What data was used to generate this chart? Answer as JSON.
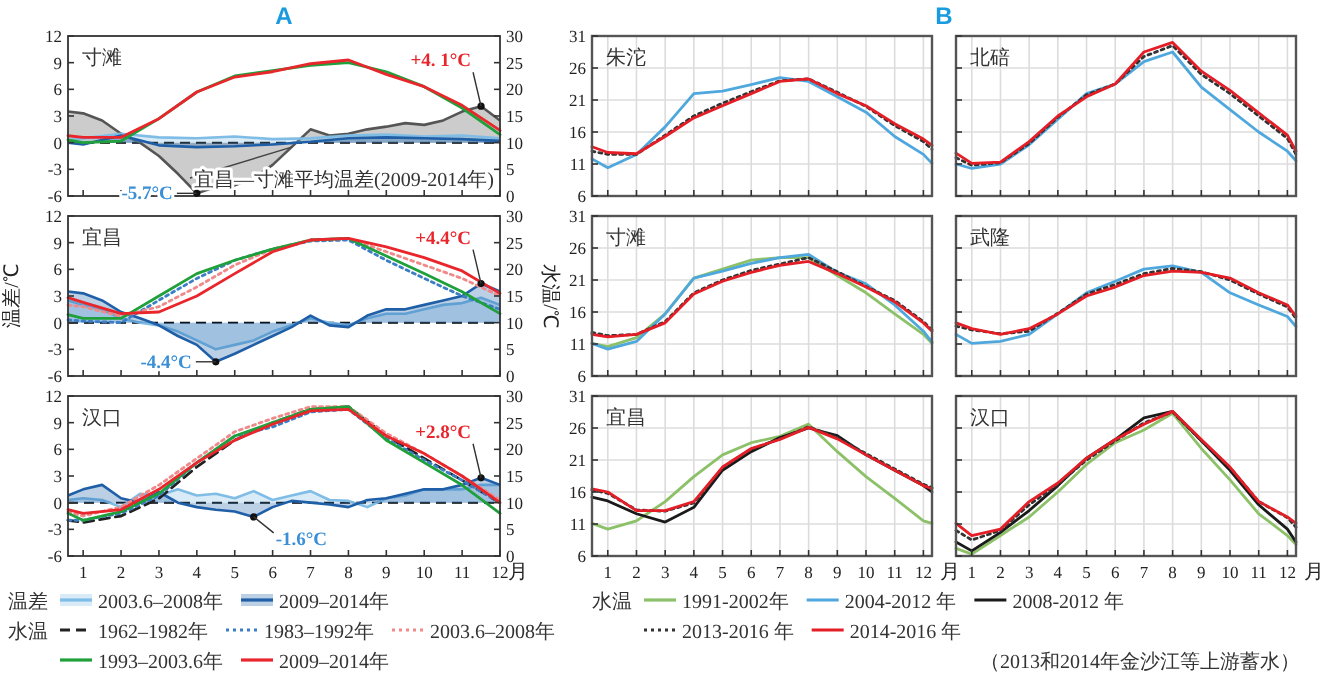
{
  "chart_data": [
    {
      "type": "line",
      "title": "寸滩",
      "annotations": [
        "A",
        {
          "text": "+4. 1°C",
          "x": 11.5,
          "y": 4.1
        },
        {
          "text": "-5.7°C",
          "x": 4,
          "y": -5.7
        }
      ],
      "tick_labels": "y",
      "x": [
        0.6,
        1,
        2,
        3,
        4,
        5,
        6,
        7,
        8,
        9,
        10,
        11,
        12
      ],
      "xlim": [
        0.6,
        12
      ],
      "xticks": [
        1,
        2,
        3,
        4,
        5,
        6,
        7,
        8,
        9,
        10,
        11,
        12
      ],
      "ylim": [
        -6,
        12
      ],
      "yticks": [
        -6,
        -3,
        0,
        3,
        6,
        9,
        12
      ],
      "y2lim": [
        0,
        30
      ],
      "y2ticks": [
        0,
        5,
        10,
        15,
        20,
        25,
        30
      ],
      "ref_lines": [
        {
          "axis": "y",
          "value": 0,
          "color": "#000000",
          "line_style": "dashed"
        }
      ],
      "series": [
        {
          "type": "area",
          "name": "宜昌—寸滩平均温差(2009-2014年)",
          "color": "#555555",
          "x": [
            0.6,
            1,
            1.5,
            2,
            2.5,
            3,
            3.5,
            4,
            4.5,
            5,
            5.5,
            6,
            6.5,
            7,
            7.5,
            8,
            8.5,
            9,
            9.5,
            10,
            10.5,
            11,
            11.5,
            12
          ],
          "values": [
            3.5,
            3.3,
            2.5,
            1,
            0,
            -1.5,
            -3.5,
            -5.7,
            -5,
            -4.8,
            -4,
            -2.5,
            -0.5,
            1.5,
            0.8,
            1,
            1.5,
            1.8,
            2.2,
            2,
            2.5,
            3.5,
            4.1,
            2.5
          ]
        },
        {
          "type": "area",
          "color": "#7fbce6",
          "values": [
            0.3,
            0.5,
            1,
            0.6,
            0.5,
            0.7,
            0.4,
            0.5,
            0.8,
            0.9,
            0.7,
            0.8,
            0.5
          ]
        },
        {
          "type": "area",
          "color": "#1f5fa8",
          "values": [
            0,
            -0.2,
            0.8,
            -0.3,
            -0.5,
            -0.4,
            -0.2,
            0.1,
            0.5,
            0.6,
            0.5,
            0.4,
            0.2
          ]
        },
        {
          "axis": "y2",
          "color": "#1fa03a",
          "values": [
            10.5,
            10,
            10.3,
            14.5,
            19.5,
            22.5,
            23.5,
            24.5,
            25,
            23.3,
            20.5,
            16.5,
            11.5
          ]
        },
        {
          "axis": "y2",
          "color": "#e8262b",
          "values": [
            11.3,
            11,
            11,
            14.5,
            19.5,
            22.3,
            23.3,
            24.8,
            25.5,
            22.8,
            20.5,
            17,
            12.3
          ]
        }
      ]
    },
    {
      "type": "line",
      "title": "宜昌",
      "ylabel": "温差/℃",
      "y2label": "水温/℃",
      "annotations": [
        {
          "text": "+4.4°C",
          "x": 11.5,
          "y": 4.4
        },
        {
          "text": "-4.4°C",
          "x": 4.5,
          "y": -4.4
        }
      ],
      "tick_labels": "y",
      "x": [
        0.6,
        1,
        2,
        3,
        4,
        5,
        6,
        7,
        8,
        9,
        10,
        11,
        12
      ],
      "xlim": [
        0.6,
        12
      ],
      "xticks": [
        1,
        2,
        3,
        4,
        5,
        6,
        7,
        8,
        9,
        10,
        11,
        12
      ],
      "ylim": [
        -6,
        12
      ],
      "yticks": [
        -6,
        -3,
        0,
        3,
        6,
        9,
        12
      ],
      "y2lim": [
        0,
        30
      ],
      "y2ticks": [
        0,
        5,
        10,
        15,
        20,
        25,
        30
      ],
      "ref_lines": [
        {
          "axis": "y",
          "value": 0,
          "color": "#000000",
          "line_style": "dashed"
        }
      ],
      "series": [
        {
          "type": "area",
          "color": "#7fbce6",
          "x": [
            0.6,
            1,
            1.5,
            2,
            2.5,
            3,
            3.5,
            4,
            4.5,
            5,
            5.5,
            6,
            6.5,
            7,
            7.5,
            8,
            8.5,
            9,
            9.5,
            10,
            10.5,
            11,
            11.5,
            12
          ],
          "values": [
            2.5,
            2,
            1.5,
            0.5,
            0,
            -0.3,
            -1,
            -2,
            -3,
            -2.5,
            -2,
            -1,
            -0.3,
            0.5,
            0,
            -0.3,
            0.5,
            1,
            1,
            1.5,
            2,
            2.2,
            2.8,
            2
          ]
        },
        {
          "type": "area",
          "color": "#1f5fa8",
          "x": [
            0.6,
            1,
            1.5,
            2,
            2.5,
            3,
            3.5,
            4,
            4.5,
            5,
            5.5,
            6,
            6.5,
            7,
            7.5,
            8,
            8.5,
            9,
            9.5,
            10,
            10.5,
            11,
            11.5,
            12
          ],
          "values": [
            3.5,
            3.3,
            2.5,
            1.2,
            0.5,
            -0.3,
            -1.5,
            -2.5,
            -4.4,
            -3.5,
            -2.5,
            -1.5,
            -0.5,
            0.8,
            -0.3,
            -0.5,
            0.8,
            1.5,
            1.5,
            2,
            2.5,
            3,
            4.4,
            3.5
          ]
        },
        {
          "axis": "y2",
          "color": "#3a7fc6",
          "line_style": "dotted",
          "values": [
            10.5,
            10.3,
            10,
            14.2,
            18.3,
            21.7,
            23.8,
            25.3,
            25.5,
            21.7,
            18.3,
            15,
            12.5
          ]
        },
        {
          "axis": "y2",
          "color": "#f08a8a",
          "line_style": "dotted",
          "values": [
            13.3,
            13,
            11.2,
            13,
            16.7,
            20.8,
            23.8,
            25.5,
            25.8,
            23.3,
            20.8,
            18.3,
            15
          ]
        },
        {
          "axis": "y2",
          "color": "#1fa03a",
          "values": [
            11.5,
            10.8,
            10.8,
            15,
            19.2,
            21.7,
            23.8,
            25.5,
            25.8,
            22.5,
            19.2,
            15.8,
            11.7
          ]
        },
        {
          "axis": "y2",
          "color": "#e8262b",
          "values": [
            14.7,
            13.8,
            11.7,
            12,
            15,
            19.2,
            23.3,
            25.5,
            25.8,
            24.2,
            22.2,
            19.7,
            15.5
          ]
        }
      ]
    },
    {
      "type": "line",
      "title": "汉口",
      "xlabel": "月",
      "legend": "bottom",
      "legend_title": "温差",
      "annotations": [
        "水温",
        {
          "text": "+2.8°C",
          "x": 11.5,
          "y": 2.8
        },
        {
          "text": "-1.6°C",
          "x": 5.5,
          "y": -1.6
        }
      ],
      "x": [
        0.6,
        1,
        2,
        3,
        4,
        5,
        6,
        7,
        8,
        9,
        10,
        11,
        12
      ],
      "xlim": [
        0.6,
        12
      ],
      "xticks": [
        1,
        2,
        3,
        4,
        5,
        6,
        7,
        8,
        9,
        10,
        11,
        12
      ],
      "ylim": [
        -6,
        12
      ],
      "yticks": [
        -6,
        -3,
        0,
        3,
        6,
        9,
        12
      ],
      "y2lim": [
        0,
        30
      ],
      "y2ticks": [
        0,
        5,
        10,
        15,
        20,
        25,
        30
      ],
      "ref_lines": [
        {
          "axis": "y",
          "value": 0,
          "color": "#000000",
          "line_style": "dashed"
        }
      ],
      "series": [
        {
          "type": "area",
          "name": "2003.6–2008年",
          "color": "#7fbce6",
          "x": [
            0.6,
            1,
            1.5,
            2,
            2.5,
            3,
            3.5,
            4,
            4.5,
            5,
            5.5,
            6,
            6.5,
            7,
            7.5,
            8,
            8.5,
            9,
            9.5,
            10,
            10.5,
            11,
            11.5,
            12
          ],
          "values": [
            0.3,
            0.5,
            0.3,
            -0.5,
            1,
            0.8,
            1.5,
            0.8,
            1,
            0.5,
            1.3,
            0.3,
            0.8,
            1.3,
            0.3,
            0.2,
            -0.5,
            0.5,
            0.8,
            1.5,
            1.5,
            1.5,
            2,
            2
          ]
        },
        {
          "type": "area",
          "name": "2009–2014年",
          "color": "#1f5fa8",
          "x": [
            0.6,
            1,
            1.5,
            2,
            2.5,
            3,
            3.5,
            4,
            4.5,
            5,
            5.5,
            6,
            6.5,
            7,
            7.5,
            8,
            8.5,
            9,
            9.5,
            10,
            10.5,
            11,
            11.5,
            12
          ],
          "values": [
            0.8,
            1.5,
            2,
            0.5,
            0,
            1.2,
            0,
            -0.5,
            -0.8,
            -1,
            -1.6,
            -0.5,
            0.2,
            0,
            -0.2,
            -0.5,
            0.3,
            0.5,
            1,
            1.5,
            1.5,
            2,
            2.8,
            2
          ]
        },
        {
          "axis": "y2",
          "name": "1962–1982年",
          "color": "#222222",
          "line_style": "dashed",
          "values": [
            6.7,
            6.3,
            7.5,
            10.8,
            16.7,
            21.7,
            25,
            27.5,
            28,
            22.5,
            18.3,
            14.2,
            10
          ]
        },
        {
          "axis": "y2",
          "name": "1983–1992年",
          "color": "#3a7fc6",
          "line_style": "dotted",
          "values": [
            6.7,
            6.7,
            8,
            11.3,
            17.5,
            22.5,
            24.2,
            27,
            27.5,
            22,
            18,
            14.2,
            10
          ]
        },
        {
          "axis": "y2",
          "name": "2003.6–2008年",
          "color": "#f08a8a",
          "line_style": "dotted",
          "values": [
            8.3,
            7.5,
            9.2,
            13.3,
            18.3,
            23.3,
            25.8,
            28,
            28,
            23,
            19.2,
            15,
            10.5
          ]
        },
        {
          "axis": "y2",
          "name": "1993–2003.6年",
          "color": "#1fa03a",
          "values": [
            8,
            6.7,
            8.3,
            11.7,
            17.5,
            22.5,
            25,
            27.5,
            28,
            21.7,
            17.5,
            13.3,
            8
          ]
        },
        {
          "axis": "y2",
          "name": "2009–2014年",
          "color": "#e8262b",
          "values": [
            8.7,
            8,
            8.7,
            12.5,
            17.5,
            21.7,
            24.7,
            27.2,
            27.5,
            22.5,
            19.2,
            15,
            10
          ]
        }
      ]
    },
    {
      "type": "line",
      "title": "朱沱",
      "annotations": [
        "B"
      ],
      "tick_labels": "y",
      "grid": true,
      "x": [
        0.45,
        1,
        2,
        3,
        4,
        5,
        6,
        7,
        8,
        9,
        10,
        11,
        12,
        12.3
      ],
      "xlim": [
        0.45,
        12.3
      ],
      "xticks": [
        1,
        2,
        3,
        4,
        5,
        6,
        7,
        8,
        9,
        10,
        11,
        12
      ],
      "ylim": [
        6,
        31
      ],
      "yticks": [
        6,
        11,
        16,
        21,
        26,
        31
      ],
      "series": [
        {
          "color": "#4ea8de",
          "values": [
            11.8,
            10.4,
            12.5,
            16.8,
            22,
            22.4,
            23.4,
            24.5,
            23.9,
            21.5,
            19.1,
            15.3,
            12.5,
            11.1
          ]
        },
        {
          "color": "#333333",
          "line_style": "dotted",
          "values": [
            13,
            12.5,
            12.5,
            15.5,
            18.5,
            20.5,
            22.3,
            24,
            24.3,
            22.2,
            20,
            17,
            14.5,
            13.3
          ]
        },
        {
          "color": "#e41e26",
          "values": [
            13.7,
            12.8,
            12.6,
            15.3,
            18.2,
            20.1,
            22,
            23.9,
            24.3,
            22,
            20.1,
            17.3,
            14.9,
            13.9
          ]
        }
      ]
    },
    {
      "type": "line",
      "title": "北碚",
      "tick_labels": false,
      "grid": true,
      "x": [
        0.45,
        1,
        2,
        3,
        4,
        5,
        6,
        7,
        8,
        9,
        10,
        11,
        12,
        12.3
      ],
      "xlim": [
        0.45,
        12.3
      ],
      "xticks": [
        1,
        2,
        3,
        4,
        5,
        6,
        7,
        8,
        9,
        10,
        11,
        12
      ],
      "ylim": [
        6,
        31
      ],
      "yticks": [
        6,
        11,
        16,
        21,
        26,
        31
      ],
      "series": [
        {
          "color": "#4ea8de",
          "values": [
            11,
            10.3,
            11,
            14,
            18,
            22,
            23.5,
            27,
            28.5,
            23,
            19.5,
            16,
            13,
            11.5
          ]
        },
        {
          "color": "#333333",
          "line_style": "dotted",
          "values": [
            12,
            10.8,
            11.2,
            14.2,
            18.3,
            21.8,
            23.5,
            27.8,
            29.5,
            25,
            22,
            18.5,
            15,
            12.5
          ]
        },
        {
          "color": "#e41e26",
          "values": [
            12.7,
            11.1,
            11.3,
            14.5,
            18.5,
            21.5,
            23.5,
            28.5,
            30,
            25.5,
            22.5,
            19,
            15.5,
            13
          ]
        }
      ]
    },
    {
      "type": "line",
      "title": "寸滩",
      "tick_labels": "y",
      "grid": true,
      "x": [
        0.45,
        1,
        2,
        3,
        4,
        5,
        6,
        7,
        8,
        9,
        10,
        11,
        12,
        12.3
      ],
      "xlim": [
        0.45,
        12.3
      ],
      "xticks": [
        1,
        2,
        3,
        4,
        5,
        6,
        7,
        8,
        9,
        10,
        11,
        12
      ],
      "ylim": [
        6,
        31
      ],
      "yticks": [
        6,
        11,
        16,
        21,
        26,
        31
      ],
      "series": [
        {
          "name": "1991-2002年",
          "color": "#8cc168",
          "values": [
            11.1,
            10.6,
            12,
            15.7,
            21.3,
            22.7,
            24.1,
            24.5,
            24.5,
            21.7,
            19,
            15.7,
            12.5,
            11.1
          ]
        },
        {
          "name": "2004-2012 年",
          "color": "#4ea8de",
          "values": [
            11.1,
            10.2,
            11.4,
            15.7,
            21.3,
            22.4,
            23.6,
            24.5,
            25,
            22.2,
            20.4,
            17.1,
            13,
            11.3
          ]
        },
        {
          "color": "#333333",
          "line_style": "dotted",
          "values": [
            12.8,
            12.3,
            12.5,
            14.5,
            19,
            21,
            22.5,
            23.5,
            24.5,
            22.3,
            20,
            17.8,
            14.5,
            13.2
          ]
        },
        {
          "color": "#e41e26",
          "values": [
            12.5,
            12.1,
            12.5,
            14.3,
            18.8,
            20.8,
            22.2,
            23.3,
            23.9,
            22,
            19.9,
            17.6,
            14.3,
            13
          ]
        }
      ]
    },
    {
      "type": "line",
      "title": "武隆",
      "tick_labels": false,
      "grid": true,
      "x": [
        0.45,
        1,
        2,
        3,
        4,
        5,
        6,
        7,
        8,
        9,
        10,
        11,
        12,
        12.3
      ],
      "xlim": [
        0.45,
        12.3
      ],
      "xticks": [
        1,
        2,
        3,
        4,
        5,
        6,
        7,
        8,
        9,
        10,
        11,
        12
      ],
      "ylim": [
        6,
        31
      ],
      "yticks": [
        6,
        11,
        16,
        21,
        26,
        31
      ],
      "series": [
        {
          "color": "#4ea8de",
          "values": [
            12.5,
            11.1,
            11.4,
            12.5,
            15.7,
            19,
            20.8,
            22.7,
            23.2,
            22.2,
            19,
            17.1,
            15.3,
            13.7
          ]
        },
        {
          "color": "#333333",
          "line_style": "dotted",
          "values": [
            13.8,
            13.2,
            12.6,
            13,
            15.8,
            18.8,
            20.3,
            22,
            22.8,
            22.3,
            21,
            18.8,
            16.8,
            15
          ]
        },
        {
          "color": "#e41e26",
          "values": [
            14.3,
            13.4,
            12.5,
            13.4,
            15.7,
            18.5,
            19.9,
            21.7,
            22.4,
            22.2,
            21.3,
            19,
            17.1,
            15.3
          ]
        }
      ]
    },
    {
      "type": "line",
      "title": "宜昌",
      "xlabel": "月",
      "grid": true,
      "legend": "bottom",
      "legend_title": "水温",
      "annotations": [
        "（2013和2014年金沙江等上游蓄水）"
      ],
      "x": [
        0.45,
        1,
        2,
        3,
        4,
        5,
        6,
        7,
        8,
        9,
        10,
        11,
        12,
        12.3
      ],
      "xlim": [
        0.45,
        12.3
      ],
      "xticks": [
        1,
        2,
        3,
        4,
        5,
        6,
        7,
        8,
        9,
        10,
        11,
        12
      ],
      "ylim": [
        6,
        31
      ],
      "yticks": [
        6,
        11,
        16,
        21,
        26,
        31
      ],
      "series": [
        {
          "color": "#8cc168",
          "values": [
            11.1,
            10.2,
            11.5,
            14.5,
            18.4,
            21.8,
            23.7,
            24.7,
            26.6,
            22.3,
            18.4,
            15,
            11.5,
            11.1
          ]
        },
        {
          "name": "2008-2012 年",
          "color": "#1a1a1a",
          "values": [
            15.2,
            14.6,
            12.6,
            11.3,
            13.6,
            19.4,
            22.3,
            24.5,
            26,
            24.8,
            21.8,
            19.4,
            17,
            16
          ]
        },
        {
          "name": "2013-2016 年",
          "color": "#333333",
          "line_style": "dotted",
          "values": [
            16.3,
            15.8,
            13.2,
            13,
            14.3,
            19.8,
            22.7,
            24.3,
            26.2,
            24.5,
            22,
            19.6,
            17.2,
            16.7
          ]
        },
        {
          "name": "2014-2016 年",
          "color": "#e41e26",
          "values": [
            16.5,
            16,
            13.1,
            13.1,
            14.5,
            19.9,
            22.8,
            24.2,
            26.1,
            24.3,
            21.8,
            19.4,
            17,
            16.5
          ]
        }
      ]
    },
    {
      "type": "line",
      "title": "汉口",
      "xlabel": "月",
      "tick_labels": "x",
      "grid": true,
      "x": [
        0.45,
        1,
        2,
        3,
        4,
        5,
        6,
        7,
        8,
        9,
        10,
        11,
        12,
        12.3
      ],
      "xlim": [
        0.45,
        12.3
      ],
      "xticks": [
        1,
        2,
        3,
        4,
        5,
        6,
        7,
        8,
        9,
        10,
        11,
        12
      ],
      "ylim": [
        6,
        31
      ],
      "yticks": [
        6,
        11,
        16,
        21,
        26,
        31
      ],
      "series": [
        {
          "color": "#8cc168",
          "values": [
            7.2,
            6.3,
            9.2,
            12.1,
            16,
            20.3,
            23.7,
            25.7,
            28.3,
            22.8,
            17.9,
            12.6,
            9.2,
            7.8
          ]
        },
        {
          "color": "#1a1a1a",
          "values": [
            8.2,
            6.8,
            9.7,
            13.1,
            17,
            21.3,
            24.2,
            27.6,
            28.6,
            24,
            19.4,
            14,
            10.2,
            8.2
          ]
        },
        {
          "color": "#333333",
          "line_style": "dotted",
          "values": [
            10,
            8.5,
            10,
            14,
            17.2,
            21,
            24,
            26.8,
            28.5,
            24,
            19.8,
            14.5,
            12,
            10.5
          ]
        },
        {
          "color": "#e41e26",
          "values": [
            11.1,
            9.2,
            10.2,
            14.5,
            17.4,
            21.3,
            24.2,
            26.6,
            28.6,
            24.2,
            19.9,
            14.5,
            12.1,
            11.1
          ]
        }
      ]
    }
  ]
}
